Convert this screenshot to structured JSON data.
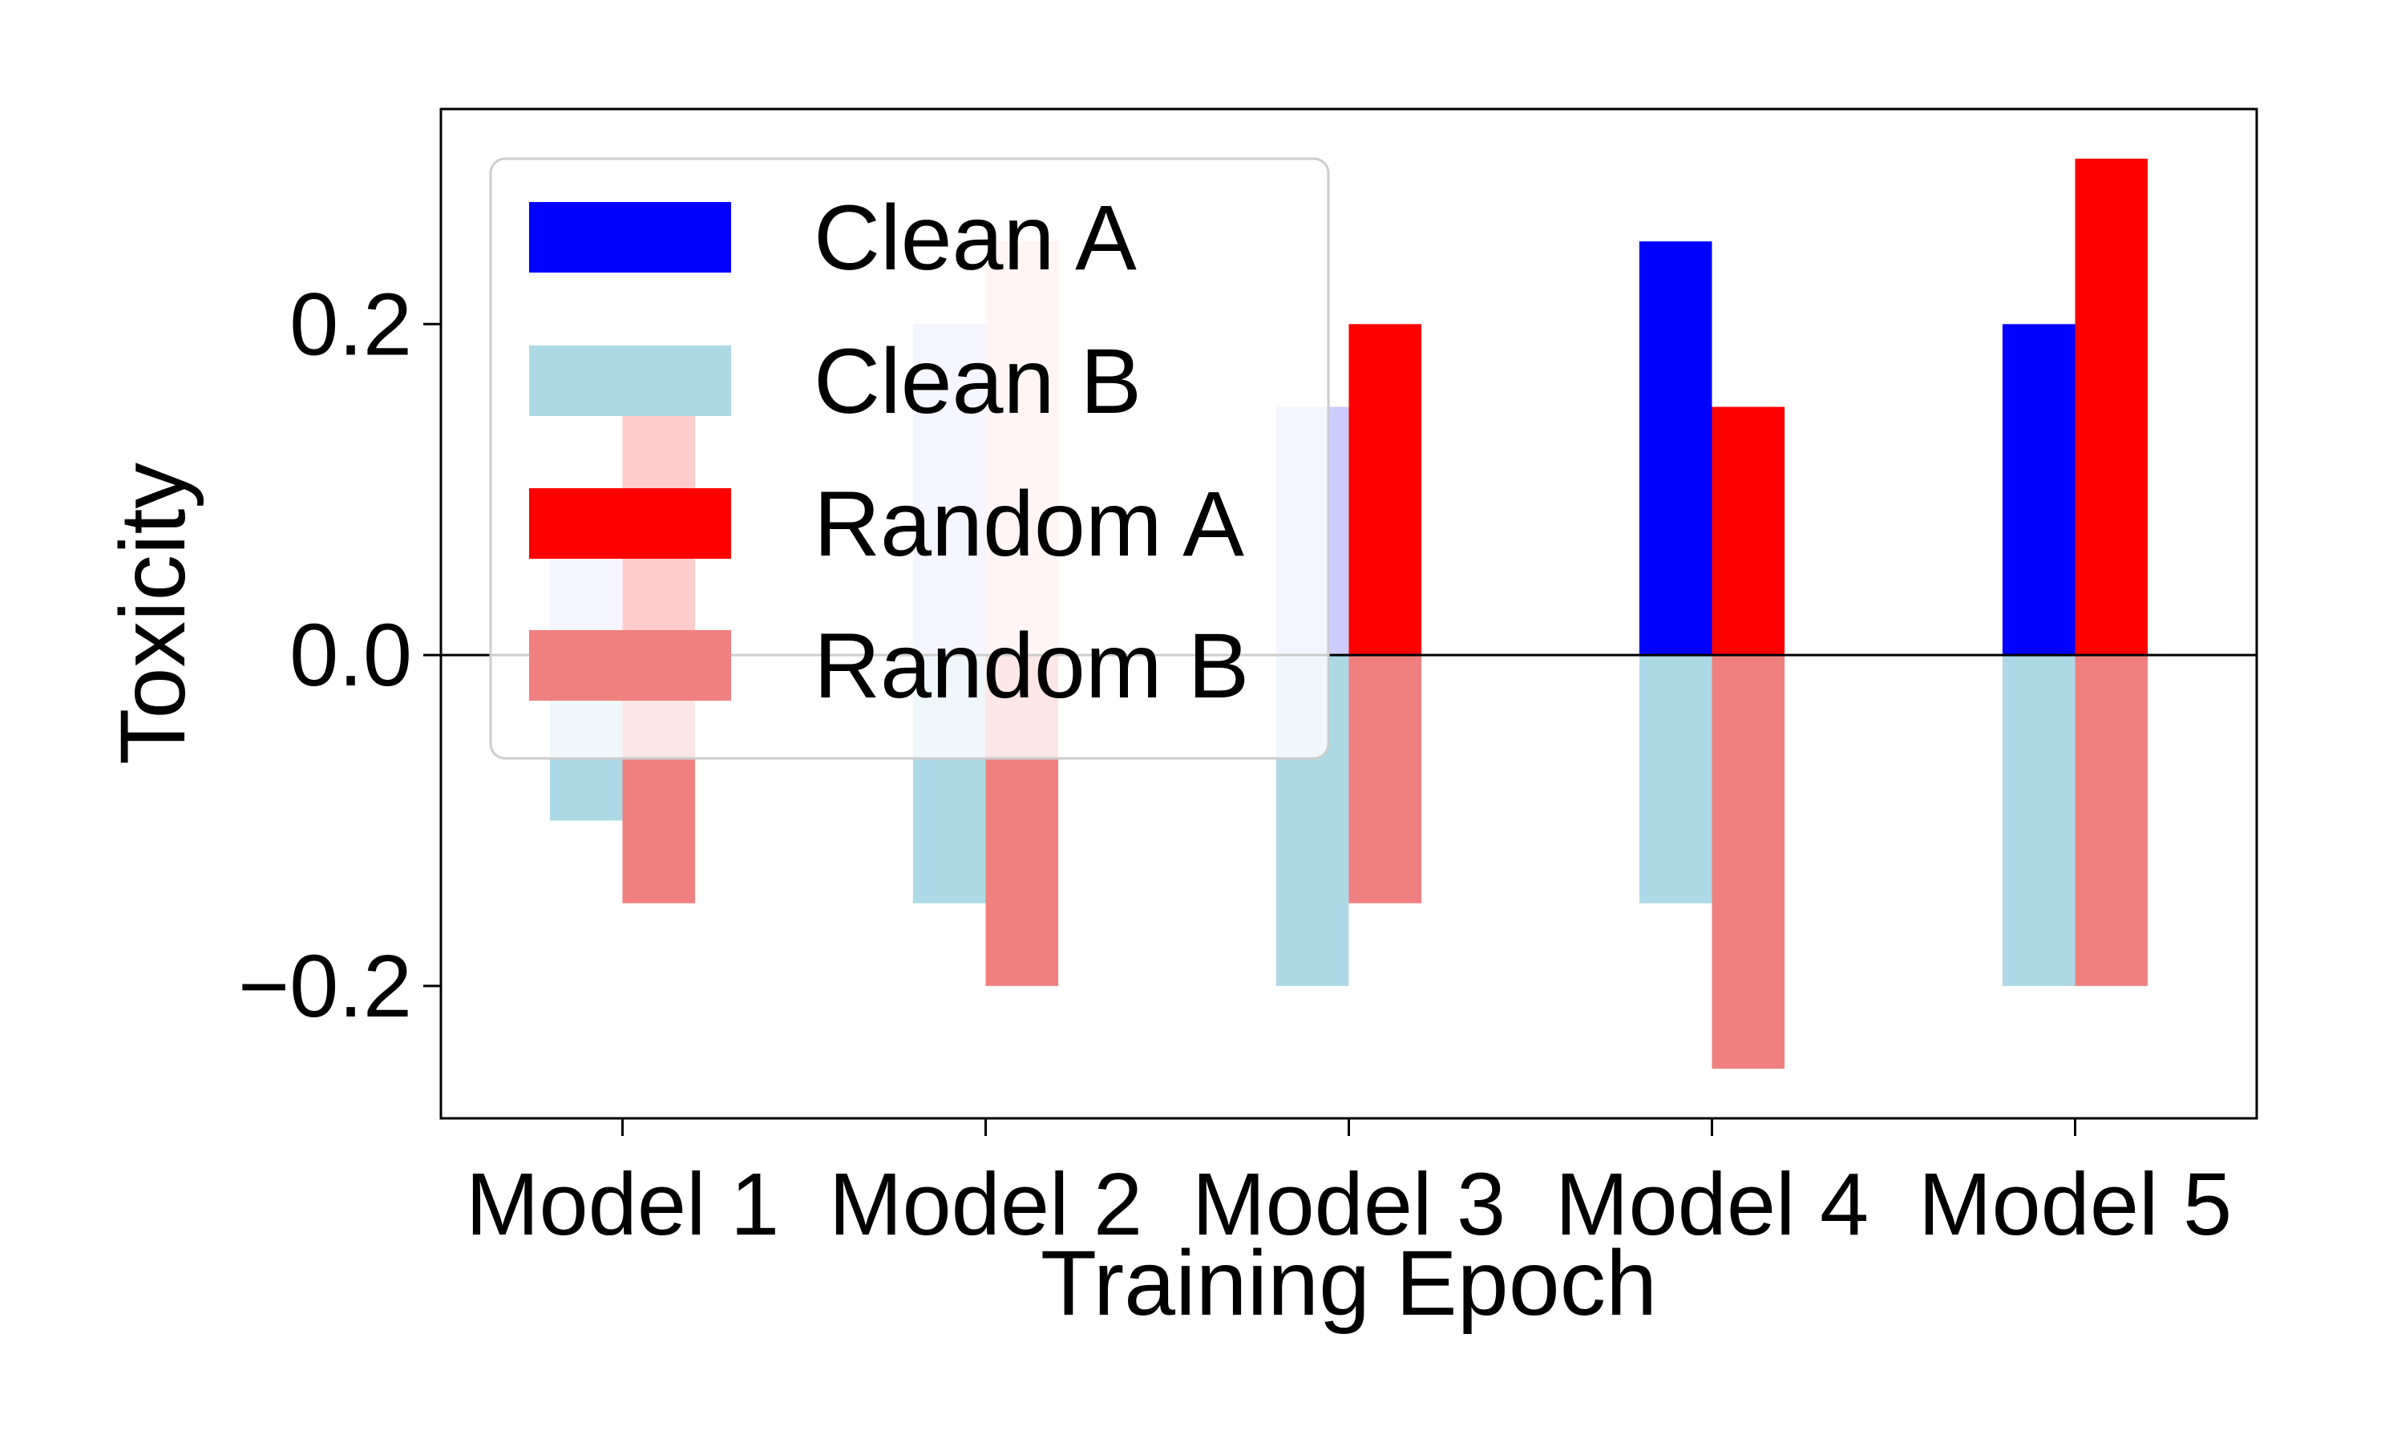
{
  "chart_data": {
    "type": "bar",
    "title": "",
    "xlabel": "Training Epoch",
    "ylabel": "Toxicity",
    "categories": [
      "Model 1",
      "Model 2",
      "Model 3",
      "Model 4",
      "Model 5"
    ],
    "ylim": [
      -0.28,
      0.33
    ],
    "yticks": [
      -0.2,
      0.0,
      0.2
    ],
    "ytick_labels": [
      "−0.2",
      "0.0",
      "0.2"
    ],
    "zero_line": true,
    "grid": false,
    "legend_position": "top-left",
    "series": [
      {
        "name": "Clean A",
        "color": "#0000ff",
        "slot": "left",
        "values": [
          0.0,
          0.0,
          0.15,
          0.25,
          0.2
        ]
      },
      {
        "name": "Clean B",
        "color": "#add8e6",
        "slot": "left",
        "values": [
          -0.1,
          -0.15,
          -0.2,
          -0.15,
          -0.2
        ]
      },
      {
        "name": "Random A",
        "color": "#ff0000",
        "slot": "right",
        "values": [
          0.15,
          0.25,
          0.2,
          0.15,
          0.3
        ]
      },
      {
        "name": "Random B",
        "color": "#f08080",
        "slot": "right",
        "values": [
          -0.15,
          -0.2,
          -0.15,
          -0.25,
          -0.2
        ]
      }
    ],
    "faded_bars": [
      {
        "category": "Model 1",
        "slot": "left",
        "value": 0.1,
        "color": "#ccccff"
      },
      {
        "category": "Model 2",
        "slot": "left",
        "value": 0.2,
        "color": "#ccccff"
      },
      {
        "category": "Model 3",
        "slot": "left",
        "value": 0.15,
        "color": "#ccccff"
      },
      {
        "category": "Model 2",
        "slot": "right",
        "value": 0.25,
        "color": "#ffcccc"
      }
    ]
  }
}
